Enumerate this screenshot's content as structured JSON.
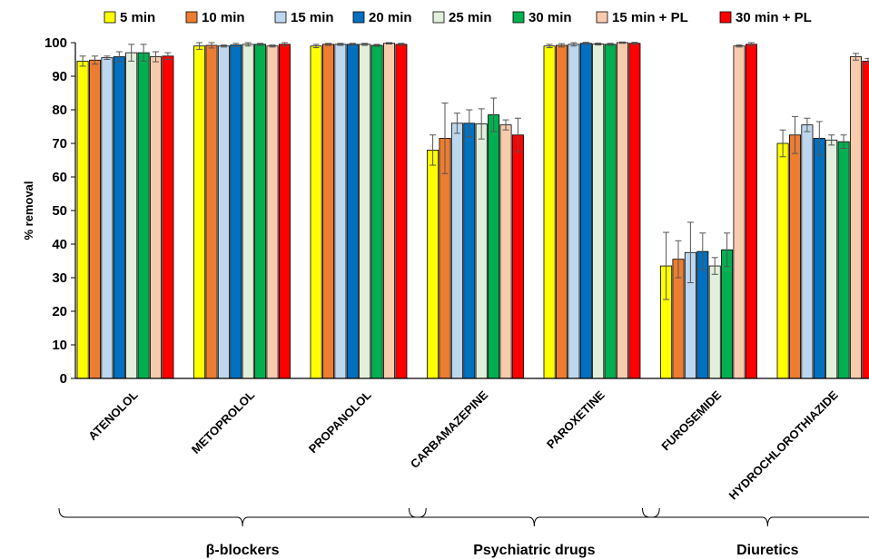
{
  "chart_data": {
    "type": "bar",
    "title": "",
    "xlabel": "",
    "ylabel": "% removal",
    "ylim": [
      0,
      100
    ],
    "yticks": [
      0,
      10,
      20,
      30,
      40,
      50,
      60,
      70,
      80,
      90,
      100
    ],
    "grid": false,
    "legend_position": "top",
    "categories": [
      "ATENOLOL",
      "METOPROLOL",
      "PROPANOLOL",
      "CARBAMAZEPINE",
      "PAROXETINE",
      "FUROSEMIDE",
      "HYDROCHLOROTHIAZIDE"
    ],
    "series": [
      {
        "name": "5 min",
        "color": "#ffff00",
        "values": [
          94.5,
          99,
          99,
          68,
          99,
          33.5,
          70
        ],
        "errors": [
          1.5,
          1,
          0.5,
          4.5,
          0.5,
          10,
          4
        ]
      },
      {
        "name": "10 min",
        "color": "#ed7d31",
        "values": [
          94.8,
          99.2,
          99.5,
          71.5,
          99.2,
          35.5,
          72.5
        ],
        "errors": [
          1.2,
          0.8,
          0.3,
          10.5,
          0.5,
          5.5,
          5.5
        ]
      },
      {
        "name": "15 min",
        "color": "#bdd7ee",
        "values": [
          95.5,
          99,
          99.5,
          76,
          99.5,
          37.5,
          75.5
        ],
        "errors": [
          0.5,
          0.3,
          0.3,
          3,
          0.5,
          9,
          2
        ]
      },
      {
        "name": "20 min",
        "color": "#0070c0",
        "values": [
          95.8,
          99.3,
          99.5,
          76,
          99.8,
          37.8,
          71.5
        ],
        "errors": [
          1.5,
          0.5,
          0.3,
          4,
          0.3,
          5.5,
          5
        ]
      },
      {
        "name": "25 min",
        "color": "#e2efda",
        "values": [
          97,
          99.5,
          99.5,
          75.8,
          99.6,
          33.5,
          71
        ],
        "errors": [
          2.5,
          0.5,
          0.3,
          4.5,
          0.3,
          2.5,
          1.5
        ]
      },
      {
        "name": "30 min",
        "color": "#00b050",
        "values": [
          97,
          99.5,
          99.2,
          78.5,
          99.5,
          38.3,
          70.5
        ],
        "errors": [
          2.5,
          0.3,
          0.3,
          5,
          0.3,
          5,
          2
        ]
      },
      {
        "name": "15 min + PL",
        "color": "#f8cbad",
        "values": [
          95.8,
          99,
          99.8,
          75.5,
          100,
          99,
          95.8
        ],
        "errors": [
          1.5,
          0.3,
          0.2,
          1.5,
          0.2,
          0.3,
          1
        ]
      },
      {
        "name": "30 min + PL",
        "color": "#ff0000",
        "values": [
          96,
          99.5,
          99.5,
          72.5,
          99.8,
          99.5,
          94.5
        ],
        "errors": [
          1,
          0.5,
          0.3,
          5,
          0.3,
          0.5,
          0.8
        ]
      }
    ],
    "groups": [
      {
        "label": "β-blockers",
        "from": 0,
        "to": 2
      },
      {
        "label": "Psychiatric drugs",
        "from": 3,
        "to": 4
      },
      {
        "label": "Diuretics",
        "from": 5,
        "to": 6
      }
    ]
  }
}
